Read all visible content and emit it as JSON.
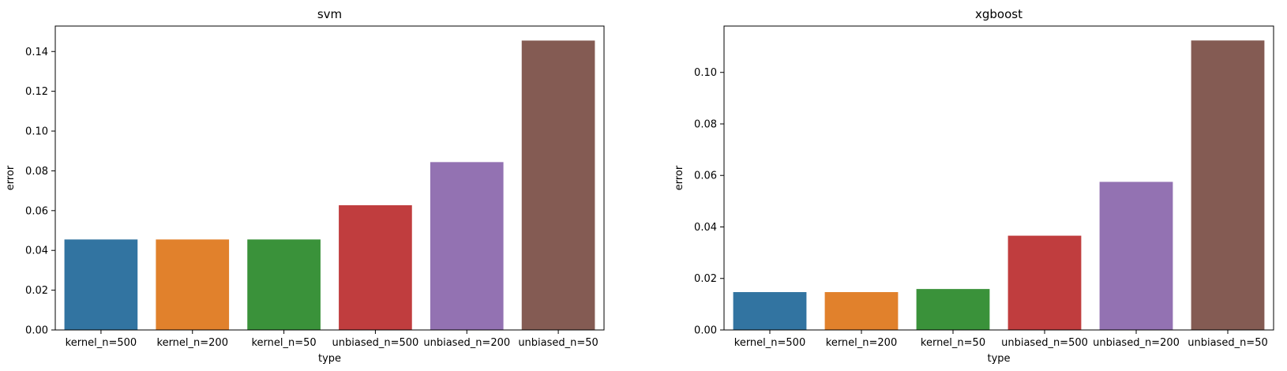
{
  "chart_data": [
    {
      "type": "bar",
      "title": "svm",
      "xlabel": "type",
      "ylabel": "error",
      "categories": [
        "kernel_n=500",
        "kernel_n=200",
        "kernel_n=50",
        "unbiased_n=500",
        "unbiased_n=200",
        "unbiased_n=50"
      ],
      "values": [
        0.0455,
        0.0455,
        0.0455,
        0.0627,
        0.0844,
        0.1455
      ],
      "colors": [
        "#3274a1",
        "#e1812c",
        "#3a923a",
        "#c03d3e",
        "#9372b2",
        "#845b53"
      ],
      "ylim": [
        0,
        0.1528
      ],
      "yticks": [
        0.0,
        0.02,
        0.04,
        0.06,
        0.08,
        0.1,
        0.12,
        0.14
      ],
      "ytick_labels": [
        "0.00",
        "0.02",
        "0.04",
        "0.06",
        "0.08",
        "0.10",
        "0.12",
        "0.14"
      ],
      "grid": false
    },
    {
      "type": "bar",
      "title": "xgboost",
      "xlabel": "type",
      "ylabel": "error",
      "categories": [
        "kernel_n=500",
        "kernel_n=200",
        "kernel_n=50",
        "unbiased_n=500",
        "unbiased_n=200",
        "unbiased_n=50"
      ],
      "values": [
        0.0147,
        0.0147,
        0.0159,
        0.0366,
        0.0575,
        0.1124
      ],
      "colors": [
        "#3274a1",
        "#e1812c",
        "#3a923a",
        "#c03d3e",
        "#9372b2",
        "#845b53"
      ],
      "ylim": [
        0,
        0.118
      ],
      "yticks": [
        0.0,
        0.02,
        0.04,
        0.06,
        0.08,
        0.1
      ],
      "ytick_labels": [
        "0.00",
        "0.02",
        "0.04",
        "0.06",
        "0.08",
        "0.10"
      ],
      "grid": false
    }
  ]
}
